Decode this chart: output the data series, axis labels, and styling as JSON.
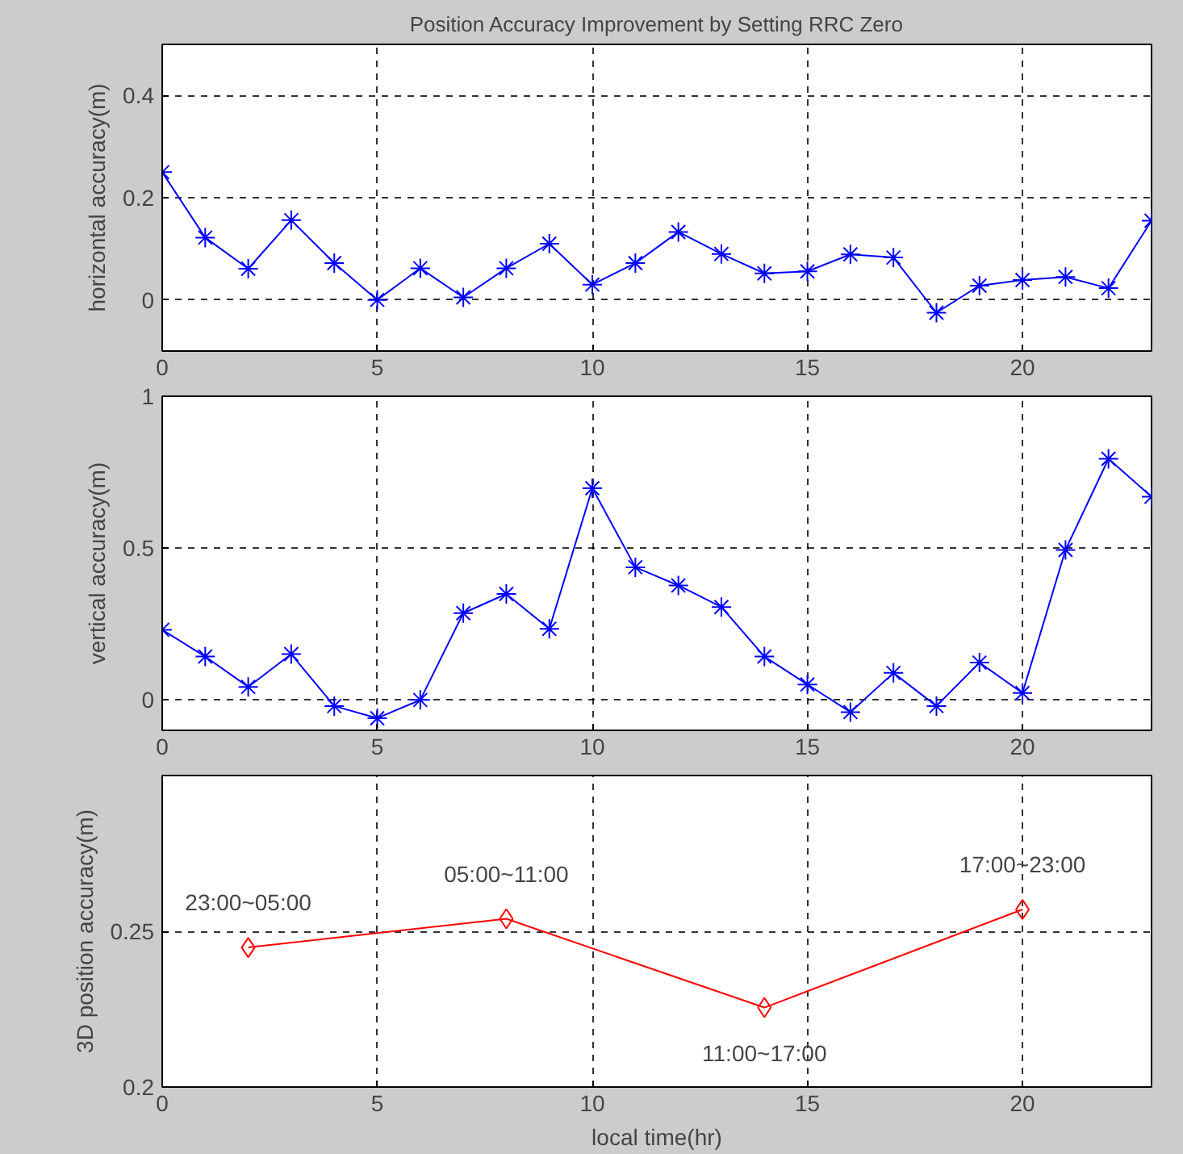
{
  "chart_data": [
    {
      "type": "line",
      "title": "Position Accuracy Improvement by Setting RRC Zero",
      "ylabel": "horizontal accuracy(m)",
      "x": [
        0,
        1,
        2,
        3,
        4,
        5,
        6,
        7,
        8,
        9,
        10,
        11,
        12,
        13,
        14,
        15,
        16,
        17,
        18,
        19,
        20,
        21,
        22,
        23
      ],
      "series": [
        {
          "color": "#0000ff",
          "values": [
            0.25,
            0.122,
            0.061,
            0.156,
            0.072,
            0,
            0.062,
            0.005,
            0.062,
            0.11,
            0.03,
            0.072,
            0.133,
            0.09,
            0.052,
            0.056,
            0.089,
            0.083,
            -0.025,
            0.028,
            0.039,
            0.045,
            0.023,
            0.155
          ]
        }
      ],
      "xlim": [
        0,
        23
      ],
      "xticks": [
        0,
        5,
        10,
        15,
        20
      ],
      "ylim": [
        -0.1,
        0.5
      ],
      "yticks": [
        0,
        0.2,
        0.4
      ],
      "grid": true,
      "marker": "cross"
    },
    {
      "type": "line",
      "ylabel": "vertical accuracy(m)",
      "x": [
        0,
        1,
        2,
        3,
        4,
        5,
        6,
        7,
        8,
        9,
        10,
        11,
        12,
        13,
        14,
        15,
        16,
        17,
        18,
        19,
        20,
        21,
        22,
        23
      ],
      "series": [
        {
          "color": "#0000ff",
          "values": [
            0.231,
            0.143,
            0.043,
            0.151,
            -0.02,
            -0.06,
            0,
            0.286,
            0.349,
            0.234,
            0.697,
            0.437,
            0.377,
            0.306,
            0.143,
            0.051,
            -0.04,
            0.089,
            -0.02,
            0.123,
            0.023,
            0.494,
            0.794,
            0.669
          ]
        }
      ],
      "xlim": [
        0,
        23
      ],
      "xticks": [
        0,
        5,
        10,
        15,
        20
      ],
      "ylim": [
        -0.1,
        1
      ],
      "yticks": [
        0,
        0.5,
        1
      ],
      "grid": true,
      "marker": "cross"
    },
    {
      "type": "line",
      "ylabel": "3D position accuracy(m)",
      "xlabel": "local time(hr)",
      "x": [
        2,
        8,
        14,
        20
      ],
      "series": [
        {
          "color": "#ff0000",
          "values": [
            0.2448,
            0.254,
            0.2255,
            0.257
          ]
        }
      ],
      "annotations": [
        {
          "text": "23:00~05:00",
          "x": 2,
          "y": 0.2448
        },
        {
          "text": "05:00~11:00",
          "x": 8,
          "y": 0.254
        },
        {
          "text": "11:00~17:00",
          "x": 14,
          "y": 0.2255
        },
        {
          "text": "17:00~23:00",
          "x": 20,
          "y": 0.257
        }
      ],
      "xlim": [
        0,
        23
      ],
      "xticks": [
        0,
        5,
        10,
        15,
        20
      ],
      "ylim": [
        0.2,
        0.3
      ],
      "yticks": [
        0.2,
        0.25
      ],
      "grid": true,
      "marker": "diamond"
    }
  ]
}
